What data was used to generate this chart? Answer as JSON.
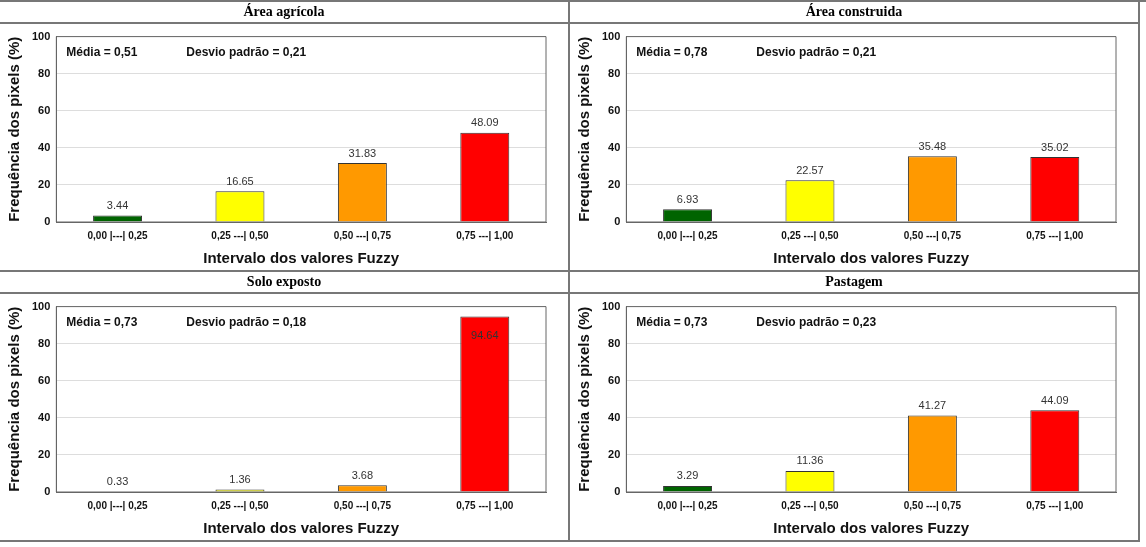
{
  "chart_data": [
    {
      "type": "bar",
      "title": "Área agrícola",
      "xlabel": "Intervalo dos valores Fuzzy",
      "ylabel": "Frequência dos pixels (%)",
      "categories": [
        "0,00 |---| 0,25",
        "0,25 ---| 0,50",
        "0,50 ---| 0,75",
        "0,75 ---| 1,00"
      ],
      "values": [
        3.44,
        16.65,
        31.83,
        48.09
      ],
      "colors": [
        "#006400",
        "#ffff00",
        "#ff9900",
        "#ff0000"
      ],
      "ylim": [
        0,
        100
      ],
      "yticks": [
        0,
        20,
        40,
        60,
        80,
        100
      ],
      "grid": "y",
      "legend": false,
      "data_labels": true,
      "annotations": [
        "Média = 0,51",
        "Desvio padrão = 0,21"
      ]
    },
    {
      "type": "bar",
      "title": "Área construida",
      "xlabel": "Intervalo dos valores Fuzzy",
      "ylabel": "Frequência dos pixels (%)",
      "categories": [
        "0,00 |---| 0,25",
        "0,25 ---| 0,50",
        "0,50 ---| 0,75",
        "0,75 ---| 1,00"
      ],
      "values": [
        6.93,
        22.57,
        35.48,
        35.02
      ],
      "colors": [
        "#006400",
        "#ffff00",
        "#ff9900",
        "#ff0000"
      ],
      "ylim": [
        0,
        100
      ],
      "yticks": [
        0,
        20,
        40,
        60,
        80,
        100
      ],
      "grid": "y",
      "legend": false,
      "data_labels": true,
      "annotations": [
        "Média = 0,78",
        "Desvio padrão = 0,21"
      ]
    },
    {
      "type": "bar",
      "title": "Solo exposto",
      "xlabel": "Intervalo dos valores Fuzzy",
      "ylabel": "Frequência dos pixels (%)",
      "categories": [
        "0,00 |---| 0,25",
        "0,25 ---| 0,50",
        "0,50 ---| 0,75",
        "0,75 ---| 1,00"
      ],
      "values": [
        0.33,
        1.36,
        3.68,
        94.64
      ],
      "colors": [
        "#006400",
        "#ffff00",
        "#ff9900",
        "#ff0000"
      ],
      "ylim": [
        0,
        100
      ],
      "yticks": [
        0,
        20,
        40,
        60,
        80,
        100
      ],
      "grid": "y",
      "legend": false,
      "data_labels": true,
      "annotations": [
        "Média = 0,73",
        "Desvio padrão = 0,18"
      ]
    },
    {
      "type": "bar",
      "title": "Pastagem",
      "xlabel": "Intervalo dos valores Fuzzy",
      "ylabel": "Frequência dos pixels (%)",
      "categories": [
        "0,00 |---| 0,25",
        "0,25 ---| 0,50",
        "0,50 ---| 0,75",
        "0,75 ---| 1,00"
      ],
      "values": [
        3.29,
        11.36,
        41.27,
        44.09
      ],
      "colors": [
        "#006400",
        "#ffff00",
        "#ff9900",
        "#ff0000"
      ],
      "ylim": [
        0,
        100
      ],
      "yticks": [
        0,
        20,
        40,
        60,
        80,
        100
      ],
      "grid": "y",
      "legend": false,
      "data_labels": true,
      "annotations": [
        "Média = 0,73",
        "Desvio padrão = 0,23"
      ]
    }
  ]
}
